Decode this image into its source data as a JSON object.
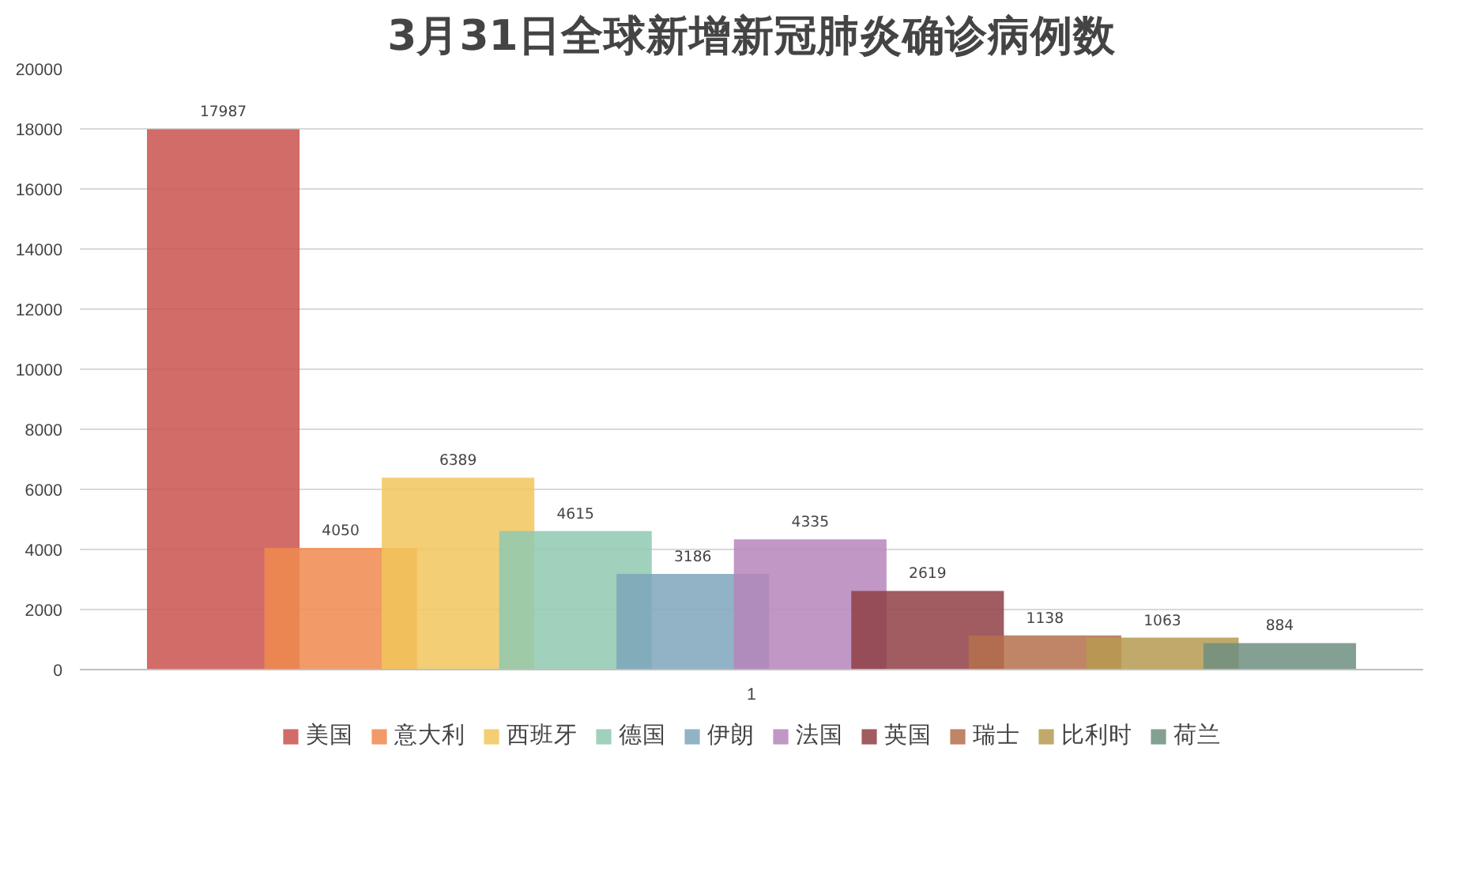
{
  "chart_data": {
    "type": "bar",
    "title": "3月31日全球新增新冠肺炎确诊病例数",
    "categories": [
      "1"
    ],
    "series": [
      {
        "name": "美国",
        "color": "#c9524f",
        "values": [
          17987
        ]
      },
      {
        "name": "意大利",
        "color": "#f0894f",
        "values": [
          4050
        ]
      },
      {
        "name": "西班牙",
        "color": "#f2c55c",
        "values": [
          6389
        ]
      },
      {
        "name": "德国",
        "color": "#8ec9b0",
        "values": [
          4615
        ]
      },
      {
        "name": "伊朗",
        "color": "#7ea6bb",
        "values": [
          3186
        ]
      },
      {
        "name": "法国",
        "color": "#b585bb",
        "values": [
          4335
        ]
      },
      {
        "name": "英国",
        "color": "#8f3f44",
        "values": [
          2619
        ]
      },
      {
        "name": "瑞士",
        "color": "#b56f4c",
        "values": [
          1138
        ]
      },
      {
        "name": "比利时",
        "color": "#b59a50",
        "values": [
          1063
        ]
      },
      {
        "name": "荷兰",
        "color": "#6f8f80",
        "values": [
          884
        ]
      }
    ],
    "ylim": [
      0,
      20000
    ],
    "yticks": [
      0,
      2000,
      4000,
      6000,
      8000,
      10000,
      12000,
      14000,
      16000,
      18000,
      20000
    ],
    "grid": "y",
    "legend": "bottom",
    "data_labels": true
  }
}
